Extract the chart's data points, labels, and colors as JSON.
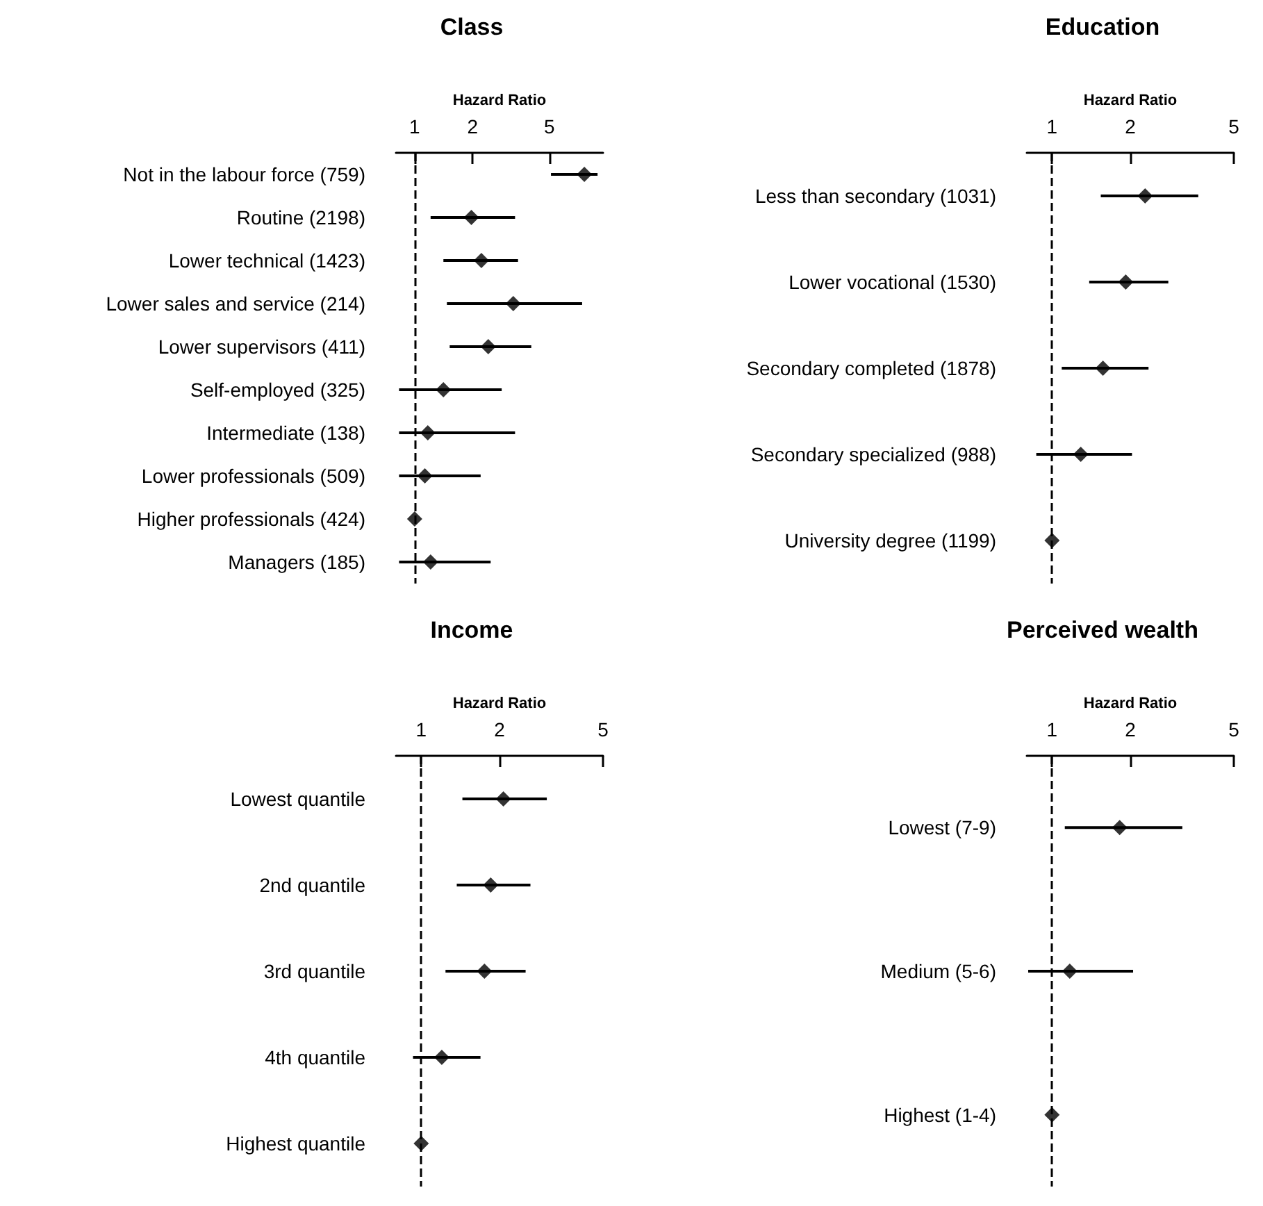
{
  "chart_data": [
    {
      "type": "scatter",
      "title": "Class",
      "xlabel": "Hazard Ratio",
      "orientation": "horizontal",
      "log": "x",
      "marker": "diamond",
      "color": "#000000",
      "grid": false,
      "categories": [
        "Not in the labour force (759)",
        "Routine (2198)",
        "Lower technical (1423)",
        "Lower sales and service (214)",
        "Lower supervisors (411)",
        "Self-employed (325)",
        "Intermediate (138)",
        "Lower professionals (509)",
        "Higher professionals (424)",
        "Managers (185)"
      ],
      "values": [
        7.6,
        1.97,
        2.22,
        3.25,
        2.41,
        1.41,
        1.17,
        1.13,
        1,
        1.21
      ],
      "errors": [
        [
          5.1,
          8.9
        ],
        [
          1.21,
          3.32
        ],
        [
          1.41,
          3.44
        ],
        [
          1.47,
          7.4
        ],
        [
          1.52,
          4.03
        ],
        [
          0.83,
          2.83
        ],
        [
          0.83,
          3.32
        ],
        [
          0.83,
          2.2
        ],
        null,
        [
          0.83,
          2.48
        ]
      ],
      "xlim": [
        0.8,
        9.5
      ],
      "xticks": [
        1,
        2,
        5
      ],
      "ref_lines": [
        {
          "axis": "x",
          "value": 1,
          "line_style": "dashed"
        }
      ]
    },
    {
      "type": "scatter",
      "title": "Education",
      "xlabel": "Hazard Ratio",
      "orientation": "horizontal",
      "log": "x",
      "marker": "diamond",
      "color": "#000000",
      "grid": false,
      "categories": [
        "Less than secondary (1031)",
        "Lower vocational (1530)",
        "Secondary completed (1878)",
        "Secondary specialized (988)",
        "University degree (1199)"
      ],
      "values": [
        2.28,
        1.92,
        1.57,
        1.29,
        1
      ],
      "errors": [
        [
          1.54,
          3.65
        ],
        [
          1.39,
          2.8
        ],
        [
          1.09,
          2.35
        ],
        [
          0.87,
          2.03
        ],
        null
      ],
      "xlim": [
        0.8,
        5
      ],
      "xticks": [
        1,
        2,
        5
      ],
      "ref_lines": [
        {
          "axis": "x",
          "value": 1,
          "line_style": "dashed"
        }
      ]
    },
    {
      "type": "scatter",
      "title": "Income",
      "xlabel": "Hazard Ratio",
      "orientation": "horizontal",
      "log": "x",
      "marker": "diamond",
      "color": "#000000",
      "grid": false,
      "categories": [
        "Lowest quantile",
        "2nd quantile",
        "3rd quantile",
        "4th quantile",
        "Highest quantile"
      ],
      "values": [
        2.07,
        1.85,
        1.75,
        1.2,
        1
      ],
      "errors": [
        [
          1.44,
          3.04
        ],
        [
          1.37,
          2.63
        ],
        [
          1.24,
          2.52
        ],
        [
          0.93,
          1.69
        ],
        null
      ],
      "xlim": [
        0.8,
        5
      ],
      "xticks": [
        1,
        2,
        5
      ],
      "ref_lines": [
        {
          "axis": "x",
          "value": 1,
          "line_style": "dashed"
        }
      ]
    },
    {
      "type": "scatter",
      "title": "Perceived wealth",
      "xlabel": "Hazard Ratio",
      "orientation": "horizontal",
      "log": "x",
      "marker": "diamond",
      "color": "#000000",
      "grid": false,
      "categories": [
        "Lowest (7-9)",
        "Medium (5-6)",
        "Highest (1-4)"
      ],
      "values": [
        1.82,
        1.17,
        1
      ],
      "errors": [
        [
          1.12,
          3.17
        ],
        [
          0.81,
          2.05
        ],
        null
      ],
      "xlim": [
        0.8,
        5
      ],
      "xticks": [
        1,
        2,
        5
      ],
      "ref_lines": [
        {
          "axis": "x",
          "value": 1,
          "line_style": "dashed"
        }
      ]
    }
  ]
}
